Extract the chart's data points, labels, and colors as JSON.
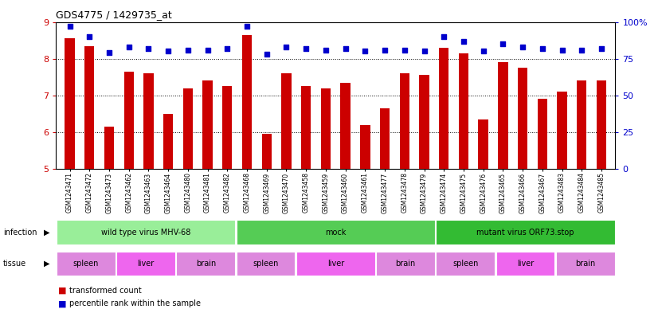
{
  "title": "GDS4775 / 1429735_at",
  "samples": [
    "GSM1243471",
    "GSM1243472",
    "GSM1243473",
    "GSM1243462",
    "GSM1243463",
    "GSM1243464",
    "GSM1243480",
    "GSM1243481",
    "GSM1243482",
    "GSM1243468",
    "GSM1243469",
    "GSM1243470",
    "GSM1243458",
    "GSM1243459",
    "GSM1243460",
    "GSM1243461",
    "GSM1243477",
    "GSM1243478",
    "GSM1243479",
    "GSM1243474",
    "GSM1243475",
    "GSM1243476",
    "GSM1243465",
    "GSM1243466",
    "GSM1243467",
    "GSM1243483",
    "GSM1243484",
    "GSM1243485"
  ],
  "transformed_count": [
    8.55,
    8.35,
    6.15,
    7.65,
    7.6,
    6.5,
    7.2,
    7.4,
    7.25,
    8.65,
    5.95,
    7.6,
    7.25,
    7.2,
    7.35,
    6.2,
    6.65,
    7.6,
    7.55,
    8.3,
    8.15,
    6.35,
    7.9,
    7.75,
    6.9,
    7.1,
    7.4,
    7.4
  ],
  "percentile_rank": [
    97,
    90,
    79,
    83,
    82,
    80,
    81,
    81,
    82,
    97,
    78,
    83,
    82,
    81,
    82,
    80,
    81,
    81,
    80,
    90,
    87,
    80,
    85,
    83,
    82,
    81,
    81,
    82
  ],
  "ylim_left": [
    5,
    9
  ],
  "ylim_right": [
    0,
    100
  ],
  "yticks_left": [
    5,
    6,
    7,
    8,
    9
  ],
  "yticks_right": [
    0,
    25,
    50,
    75,
    100
  ],
  "ytick_labels_right": [
    "0",
    "25",
    "50",
    "75",
    "100%"
  ],
  "bar_color": "#cc0000",
  "dot_color": "#0000cc",
  "bar_width": 0.5,
  "infection_groups": [
    {
      "label": "wild type virus MHV-68",
      "start": 0,
      "end": 9,
      "color": "#99ee99"
    },
    {
      "label": "mock",
      "start": 9,
      "end": 19,
      "color": "#55cc55"
    },
    {
      "label": "mutant virus ORF73.stop",
      "start": 19,
      "end": 28,
      "color": "#33bb33"
    }
  ],
  "tissue_groups": [
    {
      "label": "spleen",
      "start": 0,
      "end": 3,
      "color": "#dd88dd"
    },
    {
      "label": "liver",
      "start": 3,
      "end": 6,
      "color": "#ee66ee"
    },
    {
      "label": "brain",
      "start": 6,
      "end": 9,
      "color": "#dd88dd"
    },
    {
      "label": "spleen",
      "start": 9,
      "end": 12,
      "color": "#dd88dd"
    },
    {
      "label": "liver",
      "start": 12,
      "end": 16,
      "color": "#ee66ee"
    },
    {
      "label": "brain",
      "start": 16,
      "end": 19,
      "color": "#dd88dd"
    },
    {
      "label": "spleen",
      "start": 19,
      "end": 22,
      "color": "#dd88dd"
    },
    {
      "label": "liver",
      "start": 22,
      "end": 25,
      "color": "#ee66ee"
    },
    {
      "label": "brain",
      "start": 25,
      "end": 28,
      "color": "#dd88dd"
    }
  ]
}
